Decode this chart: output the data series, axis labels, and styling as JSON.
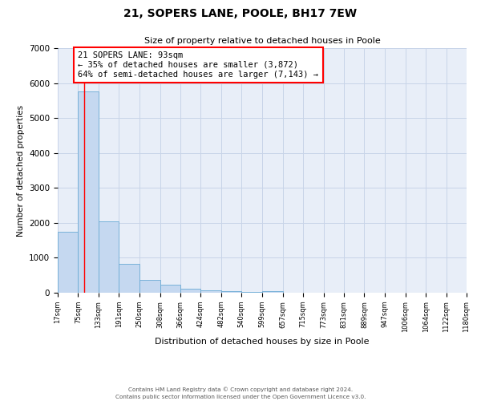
{
  "title": "21, SOPERS LANE, POOLE, BH17 7EW",
  "subtitle": "Size of property relative to detached houses in Poole",
  "xlabel": "Distribution of detached houses by size in Poole",
  "ylabel": "Number of detached properties",
  "bar_values": [
    1750,
    5750,
    2050,
    820,
    370,
    240,
    110,
    70,
    45,
    30,
    50,
    0,
    0,
    0,
    0,
    0,
    0,
    0,
    0,
    0
  ],
  "categories": [
    "17sqm",
    "75sqm",
    "133sqm",
    "191sqm",
    "250sqm",
    "308sqm",
    "366sqm",
    "424sqm",
    "482sqm",
    "540sqm",
    "599sqm",
    "657sqm",
    "715sqm",
    "773sqm",
    "831sqm",
    "889sqm",
    "947sqm",
    "1006sqm",
    "1064sqm",
    "1122sqm",
    "1180sqm"
  ],
  "bar_color": "#c5d8f0",
  "bar_edge_color": "#6aaad4",
  "grid_color": "#c8d4e8",
  "bg_color": "#e8eef8",
  "red_line_x": 93,
  "bin_edges": [
    17,
    75,
    133,
    191,
    250,
    308,
    366,
    424,
    482,
    540,
    599,
    657,
    715,
    773,
    831,
    889,
    947,
    1006,
    1064,
    1122,
    1180
  ],
  "annotation_box_text": "21 SOPERS LANE: 93sqm\n← 35% of detached houses are smaller (3,872)\n64% of semi-detached houses are larger (7,143) →",
  "ylim": [
    0,
    7000
  ],
  "yticks": [
    0,
    1000,
    2000,
    3000,
    4000,
    5000,
    6000,
    7000
  ],
  "footnote1": "Contains HM Land Registry data © Crown copyright and database right 2024.",
  "footnote2": "Contains public sector information licensed under the Open Government Licence v3.0."
}
